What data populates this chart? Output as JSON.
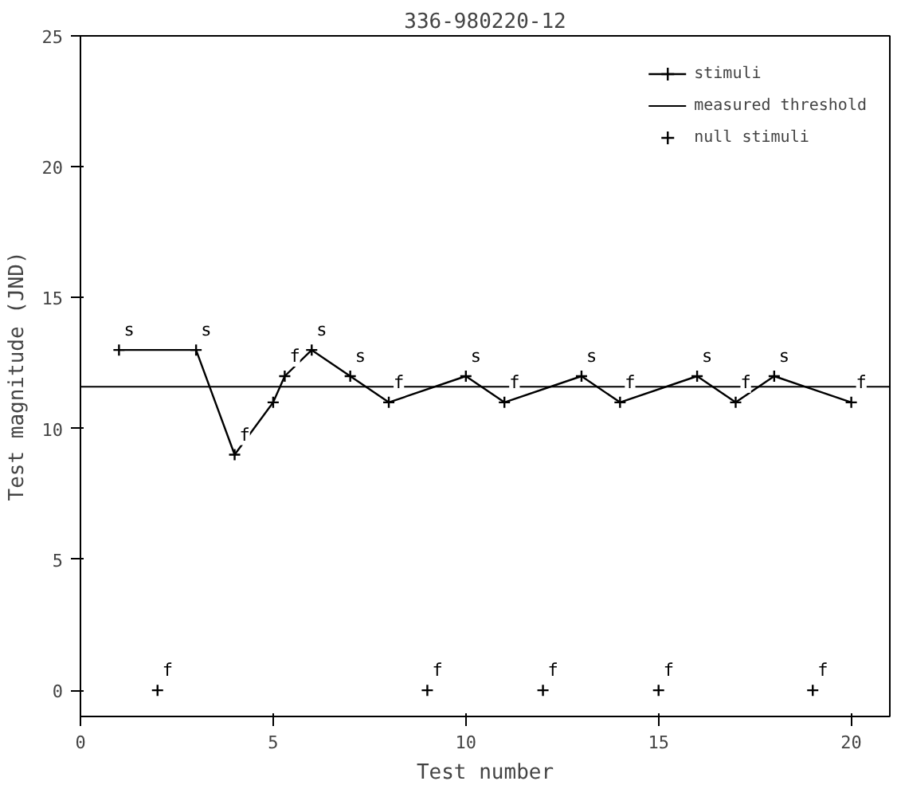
{
  "chart_data": {
    "type": "line",
    "title": "336-980220-12",
    "xlabel": "Test number",
    "ylabel": "Test magnitude (JND)",
    "xlim": [
      0,
      21
    ],
    "ylim": [
      -1,
      25
    ],
    "xticks": [
      0,
      5,
      10,
      15,
      20
    ],
    "yticks": [
      0,
      5,
      10,
      15,
      20,
      25
    ],
    "series": [
      {
        "name": "stimuli",
        "marker": "cross",
        "color": "#000000",
        "x": [
          1,
          3,
          4,
          5,
          5.3,
          6,
          7,
          8,
          10,
          11,
          13,
          14,
          16,
          17,
          18,
          20
        ],
        "values": [
          13,
          13,
          9,
          11,
          12,
          13,
          12,
          11,
          12,
          11,
          12,
          11,
          12,
          11,
          12,
          11
        ]
      },
      {
        "name": "null stimuli",
        "type": "scatter",
        "marker": "cross",
        "color": "#000000",
        "x": [
          2,
          9,
          12,
          15,
          19
        ],
        "values": [
          0,
          0,
          0,
          0,
          0
        ]
      }
    ],
    "ref_lines": [
      {
        "axis": "y",
        "value": 11.6,
        "label": "measured threshold",
        "color": "#000000",
        "line_style": "solid"
      }
    ],
    "annotations": [
      {
        "text": "s",
        "x": 1,
        "y": 13
      },
      {
        "text": "s",
        "x": 3,
        "y": 13
      },
      {
        "text": "f",
        "x": 4,
        "y": 9
      },
      {
        "text": "f",
        "x": 5.3,
        "y": 12
      },
      {
        "text": "s",
        "x": 6,
        "y": 13
      },
      {
        "text": "s",
        "x": 7,
        "y": 12
      },
      {
        "text": "f",
        "x": 8,
        "y": 11
      },
      {
        "text": "s",
        "x": 10,
        "y": 12
      },
      {
        "text": "f",
        "x": 11,
        "y": 11
      },
      {
        "text": "s",
        "x": 13,
        "y": 12
      },
      {
        "text": "f",
        "x": 14,
        "y": 11
      },
      {
        "text": "s",
        "x": 16,
        "y": 12
      },
      {
        "text": "f",
        "x": 17,
        "y": 11
      },
      {
        "text": "s",
        "x": 18,
        "y": 12
      },
      {
        "text": "f",
        "x": 20,
        "y": 11
      },
      {
        "text": "f",
        "x": 2,
        "y": 0
      },
      {
        "text": "f",
        "x": 9,
        "y": 0
      },
      {
        "text": "f",
        "x": 12,
        "y": 0
      },
      {
        "text": "f",
        "x": 15,
        "y": 0
      },
      {
        "text": "f",
        "x": 19,
        "y": 0
      }
    ],
    "legend": "top right",
    "grid": false
  }
}
